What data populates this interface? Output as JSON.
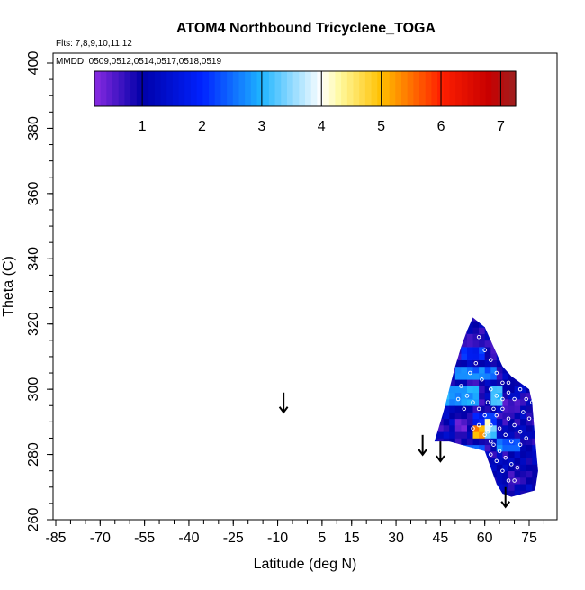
{
  "chart_data": {
    "type": "heatmap",
    "title": "ATOM4 Northbound Tricyclene_TOGA",
    "flights_note": "Flts: 7,8,9,10,11,12",
    "dates_note": "MMDD: 0509,0512,0514,0517,0518,0519",
    "xlabel": "Latitude (deg N)",
    "ylabel": "Theta (C)",
    "xlim": [
      -90,
      85
    ],
    "ylim": [
      260,
      405
    ],
    "x_tick_labels": [
      -85,
      -70,
      -55,
      -40,
      -25,
      -10,
      5,
      15,
      30,
      45,
      60,
      75
    ],
    "y_tick_labels": [
      260,
      280,
      300,
      320,
      340,
      360,
      380,
      400
    ],
    "colorbar": {
      "range": [
        0.2,
        7.25
      ],
      "ticks": [
        1,
        2,
        3,
        4,
        5,
        6,
        7
      ],
      "stops": [
        [
          0.2,
          "#8a2be2"
        ],
        [
          1.0,
          "#0000a8"
        ],
        [
          2.0,
          "#0022ff"
        ],
        [
          3.0,
          "#1eb4ff"
        ],
        [
          4.0,
          "#ffffff"
        ],
        [
          4.3,
          "#fffaa0"
        ],
        [
          5.0,
          "#ffc000"
        ],
        [
          6.0,
          "#ff2000"
        ],
        [
          6.8,
          "#c80000"
        ],
        [
          7.25,
          "#a02020"
        ]
      ]
    },
    "arrows": [
      {
        "lat": -8,
        "theta": 299
      },
      {
        "lat": 39,
        "theta": 286
      },
      {
        "lat": 45,
        "theta": 284
      },
      {
        "lat": 67,
        "theta": 270
      }
    ],
    "field": {
      "region_outline": [
        [
          43,
          284
        ],
        [
          46,
          293
        ],
        [
          48,
          300
        ],
        [
          50,
          307
        ],
        [
          52,
          313
        ],
        [
          54,
          318
        ],
        [
          56,
          322
        ],
        [
          60,
          319
        ],
        [
          63,
          313
        ],
        [
          66,
          307
        ],
        [
          69,
          304
        ],
        [
          72,
          302
        ],
        [
          75,
          300
        ],
        [
          76,
          296
        ],
        [
          77,
          285
        ],
        [
          78,
          275
        ],
        [
          77,
          269
        ],
        [
          73,
          268
        ],
        [
          69,
          267
        ],
        [
          66,
          268
        ],
        [
          64,
          271
        ],
        [
          62,
          276
        ],
        [
          60,
          281
        ],
        [
          56,
          282
        ],
        [
          52,
          283
        ],
        [
          48,
          284
        ]
      ],
      "bands": [
        {
          "lat_from": 44,
          "lat_to": 58,
          "theta_from": 296,
          "theta_to": 301,
          "value": 2.8
        },
        {
          "lat_from": 50,
          "lat_to": 64,
          "theta_from": 303,
          "theta_to": 306,
          "value": 2.5
        },
        {
          "lat_from": 56,
          "lat_to": 64,
          "theta_from": 290,
          "theta_to": 292,
          "value": 2.0
        },
        {
          "lat_from": 60,
          "lat_to": 64,
          "theta_from": 286,
          "theta_to": 288,
          "value": 3.2
        },
        {
          "lat_from": 60,
          "lat_to": 62,
          "theta_from": 288,
          "theta_to": 290,
          "value": 4.0
        },
        {
          "lat_from": 50,
          "lat_to": 54,
          "theta_from": 288,
          "theta_to": 291,
          "value": 0.3
        },
        {
          "lat_from": 48,
          "lat_to": 60,
          "theta_from": 280,
          "theta_to": 283,
          "value": 2.3
        },
        {
          "lat_from": 52,
          "lat_to": 60,
          "theta_from": 310,
          "theta_to": 313,
          "value": 2.0
        },
        {
          "lat_from": 66,
          "lat_to": 74,
          "theta_from": 295,
          "theta_to": 297,
          "value": 0.4
        },
        {
          "lat_from": 64,
          "lat_to": 72,
          "theta_from": 281,
          "theta_to": 284,
          "value": 2.5
        },
        {
          "lat_from": 57,
          "lat_to": 60,
          "theta_from": 286,
          "theta_to": 289,
          "value": 5.2
        },
        {
          "lat_from": 62,
          "lat_to": 66,
          "theta_from": 296,
          "theta_to": 300,
          "value": 3.0
        }
      ],
      "obs_points": [
        [
          58,
          316
        ],
        [
          60,
          312
        ],
        [
          62,
          309
        ],
        [
          64,
          305
        ],
        [
          66,
          302
        ],
        [
          68,
          299
        ],
        [
          70,
          297
        ],
        [
          72,
          300
        ],
        [
          74,
          297
        ],
        [
          76,
          296
        ],
        [
          62,
          300
        ],
        [
          64,
          298
        ],
        [
          66,
          294
        ],
        [
          68,
          291
        ],
        [
          70,
          289
        ],
        [
          72,
          287
        ],
        [
          64,
          292
        ],
        [
          62,
          289
        ],
        [
          61,
          287
        ],
        [
          63,
          283
        ],
        [
          65,
          281
        ],
        [
          67,
          279
        ],
        [
          69,
          277
        ],
        [
          71,
          276
        ],
        [
          62,
          280
        ],
        [
          64,
          278
        ],
        [
          66,
          275
        ],
        [
          68,
          272
        ],
        [
          70,
          272
        ],
        [
          72,
          283
        ],
        [
          74,
          285
        ],
        [
          52,
          301
        ],
        [
          54,
          298
        ],
        [
          56,
          296
        ],
        [
          58,
          294
        ],
        [
          60,
          292
        ],
        [
          55,
          305
        ],
        [
          57,
          308
        ],
        [
          59,
          303
        ],
        [
          61,
          296
        ],
        [
          63,
          294
        ],
        [
          65,
          288
        ],
        [
          67,
          286
        ],
        [
          69,
          284
        ],
        [
          62,
          284
        ],
        [
          60,
          286
        ],
        [
          58,
          289
        ],
        [
          56,
          288
        ],
        [
          53,
          294
        ],
        [
          51,
          297
        ],
        [
          66,
          297
        ],
        [
          68,
          302
        ],
        [
          70,
          305
        ],
        [
          73,
          293
        ],
        [
          75,
          291
        ]
      ]
    }
  }
}
